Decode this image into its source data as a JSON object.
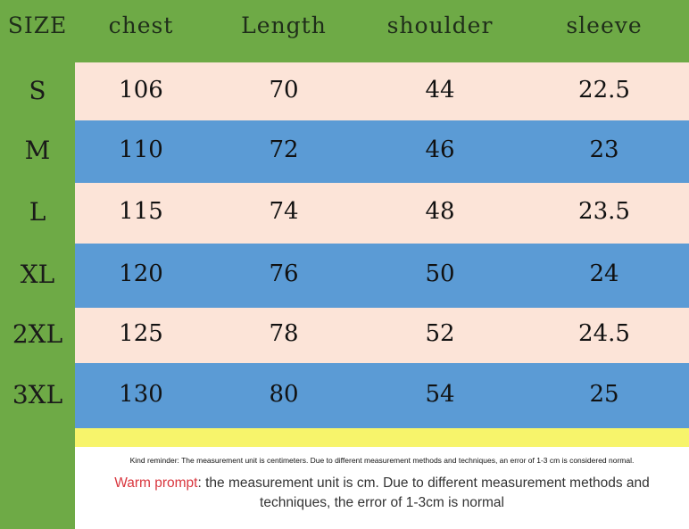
{
  "headers": {
    "size": "SIZE",
    "chest": "chest",
    "length": "Length",
    "shoulder": "shoulder",
    "sleeve": "sleeve"
  },
  "rows": [
    {
      "size": "S",
      "chest": "106",
      "length": "70",
      "shoulder": "44",
      "sleeve": "22.5"
    },
    {
      "size": "M",
      "chest": "110",
      "length": "72",
      "shoulder": "46",
      "sleeve": "23"
    },
    {
      "size": "L",
      "chest": "115",
      "length": "74",
      "shoulder": "48",
      "sleeve": "23.5"
    },
    {
      "size": "XL",
      "chest": "120",
      "length": "76",
      "shoulder": "50",
      "sleeve": "24"
    },
    {
      "size": "2XL",
      "chest": "125",
      "length": "78",
      "shoulder": "52",
      "sleeve": "24.5"
    },
    {
      "size": "3XL",
      "chest": "130",
      "length": "80",
      "shoulder": "54",
      "sleeve": "25"
    }
  ],
  "notes": {
    "reminder": "Kind reminder: The measurement unit is centimeters. Due to different measurement methods and techniques, an error of 1-3 cm is considered normal.",
    "warm_label": "Warm prompt",
    "warm_text": ": the measurement unit is cm. Due to different measurement methods and techniques, the error of 1-3cm is normal"
  },
  "colors": {
    "green": "#6eaa46",
    "pink": "#fce4d8",
    "blue": "#5b9bd5",
    "yellow": "#f7f46b",
    "warm": "#d9363e"
  }
}
